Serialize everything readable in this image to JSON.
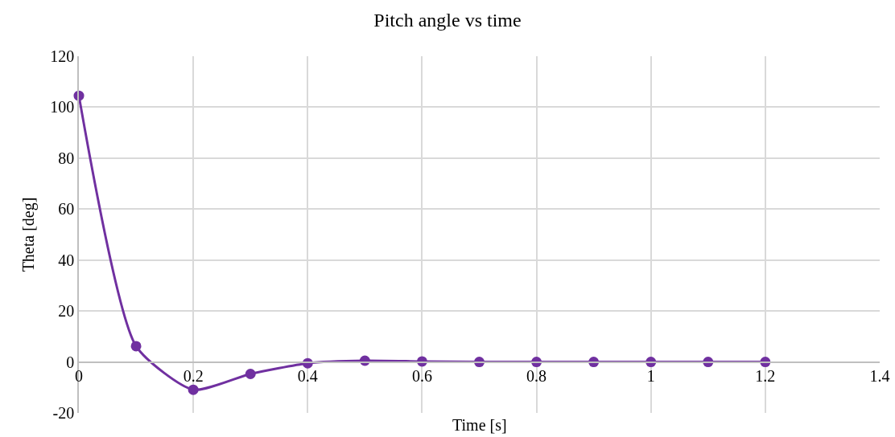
{
  "chart_data": {
    "type": "line",
    "title": "Pitch angle vs time",
    "xlabel": "Time [s]",
    "ylabel": "Theta [deg]",
    "x": [
      0,
      0.1,
      0.2,
      0.3,
      0.4,
      0.5,
      0.6,
      0.7,
      0.8,
      0.9,
      1,
      1.1,
      1.2
    ],
    "series": [
      {
        "color": "#7030a0",
        "values": [
          104.5,
          6.2,
          -10.9,
          -4.7,
          -0.5,
          0.5,
          0.2,
          0,
          0,
          0,
          0,
          0,
          0
        ]
      }
    ],
    "xlim": [
      0,
      1.4
    ],
    "xticks": [
      0,
      0.2,
      0.4,
      0.6,
      0.8,
      1,
      1.2,
      1.4
    ],
    "ylim": [
      -20,
      120
    ],
    "yticks": [
      -20,
      0,
      20,
      40,
      60,
      80,
      100,
      120
    ],
    "grid": true,
    "marker": "circle",
    "line_style": "solid"
  }
}
